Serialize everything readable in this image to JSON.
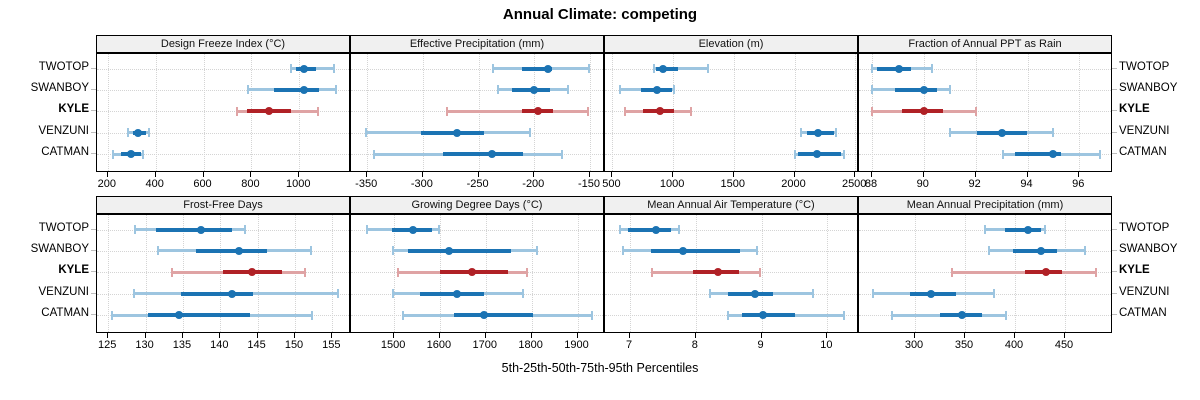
{
  "title": "Annual Climate: competing",
  "caption": "5th-25th-50th-75th-95th Percentiles",
  "stations": [
    "TWOTOP",
    "SWANBOY",
    "KYLE",
    "VENZUNI",
    "CATMAN"
  ],
  "highlight_station": "KYLE",
  "colors": {
    "blue": "#1b73b3",
    "blue_light": "#9dc5e0",
    "red": "#b02126",
    "red_light": "#dfa3a4",
    "grid": "#d4d4d4",
    "strip_bg": "#f0f0f0",
    "border": "#000000",
    "text": "#000000"
  },
  "chart_data": {
    "type": "dot-interval",
    "subtype": "trellis-percentile-dotplot",
    "percentiles": [
      5,
      25,
      50,
      75,
      95
    ],
    "layout": {
      "rows": 2,
      "cols": 4,
      "legend_position": "none",
      "grid": "dotted"
    },
    "panels": [
      {
        "strip": "Design Freeze Index (°C)",
        "xlim": [
          155,
          1216
        ],
        "ticks": [
          200,
          400,
          600,
          800,
          1000
        ],
        "tick_labels": [
          "200",
          "400",
          "600",
          "800",
          "1000"
        ],
        "series": [
          {
            "name": "TWOTOP",
            "values": [
              965,
              985,
              1020,
              1070,
              1146
            ]
          },
          {
            "name": "SWANBOY",
            "values": [
              784,
              896,
              1021,
              1083,
              1153
            ]
          },
          {
            "name": "KYLE",
            "values": [
              739,
              780,
              875,
              965,
              1077
            ]
          },
          {
            "name": "VENZUNI",
            "values": [
              284,
              304,
              325,
              360,
              374
            ]
          },
          {
            "name": "CATMAN",
            "values": [
              221,
              256,
              297,
              339,
              346
            ]
          }
        ]
      },
      {
        "strip": "Effective Precipitation (mm)",
        "xlim": [
          -364.5,
          -136.5
        ],
        "ticks": [
          -350,
          -300,
          -250,
          -200,
          -150
        ],
        "tick_labels": [
          "-350",
          "-300",
          "-250",
          "-200",
          "-150"
        ],
        "series": [
          {
            "name": "TWOTOP",
            "values": [
              -237,
              -211,
              -188,
              -184,
              -151
            ]
          },
          {
            "name": "SWANBOY",
            "values": [
              -233,
              -220,
              -200,
              -186,
              -170
            ]
          },
          {
            "name": "KYLE",
            "values": [
              -278,
              -211,
              -197,
              -183,
              -152
            ]
          },
          {
            "name": "VENZUNI",
            "values": [
              -351,
              -302,
              -269,
              -245,
              -204
            ]
          },
          {
            "name": "CATMAN",
            "values": [
              -344,
              -282,
              -238,
              -210,
              -175
            ]
          }
        ]
      },
      {
        "strip": "Elevation (m)",
        "xlim": [
          439,
          2531
        ],
        "ticks": [
          500,
          1000,
          1500,
          2000,
          2500
        ],
        "tick_labels": [
          "500",
          "1000",
          "1500",
          "2000",
          "2500"
        ],
        "series": [
          {
            "name": "TWOTOP",
            "values": [
              840,
              860,
              915,
              1040,
              1283
            ]
          },
          {
            "name": "SWANBOY",
            "values": [
              563,
              735,
              868,
              995,
              1006
            ]
          },
          {
            "name": "KYLE",
            "values": [
              602,
              749,
              892,
              1012,
              1150
            ]
          },
          {
            "name": "VENZUNI",
            "values": [
              2050,
              2100,
              2195,
              2325,
              2345
            ]
          },
          {
            "name": "CATMAN",
            "values": [
              2000,
              2025,
              2185,
              2385,
              2405
            ]
          }
        ]
      },
      {
        "strip": "Fraction of Annual PPT as Rain",
        "xlim": [
          87.5,
          97.3
        ],
        "ticks": [
          88,
          90,
          92,
          94,
          96
        ],
        "tick_labels": [
          "88",
          "90",
          "92",
          "94",
          "96"
        ],
        "series": [
          {
            "name": "TWOTOP",
            "values": [
              88.0,
              88.2,
              89.05,
              89.5,
              90.3
            ]
          },
          {
            "name": "SWANBOY",
            "values": [
              88.0,
              88.9,
              90.0,
              90.5,
              91.0
            ]
          },
          {
            "name": "KYLE",
            "values": [
              88.0,
              89.15,
              90.0,
              90.75,
              92.0
            ]
          },
          {
            "name": "VENZUNI",
            "values": [
              91.0,
              92.05,
              93.0,
              94.0,
              95.0
            ]
          },
          {
            "name": "CATMAN",
            "values": [
              93.05,
              93.5,
              95.0,
              95.3,
              96.8
            ]
          }
        ]
      },
      {
        "strip": "Frost-Free Days",
        "xlim": [
          123.5,
          157.5
        ],
        "ticks": [
          125,
          130,
          135,
          140,
          145,
          150,
          155
        ],
        "tick_labels": [
          "125",
          "130",
          "135",
          "140",
          "145",
          "150",
          "155"
        ],
        "series": [
          {
            "name": "TWOTOP",
            "values": [
              128.6,
              131.4,
              137.4,
              141.5,
              143.3
            ]
          },
          {
            "name": "SWANBOY",
            "values": [
              131.6,
              136.8,
              142.5,
              146.2,
              152.2
            ]
          },
          {
            "name": "KYLE",
            "values": [
              133.5,
              140.4,
              144.3,
              148.3,
              151.3
            ]
          },
          {
            "name": "VENZUNI",
            "values": [
              128.4,
              134.8,
              141.5,
              144.4,
              155.8
            ]
          },
          {
            "name": "CATMAN",
            "values": [
              125.5,
              130.3,
              134.5,
              144.0,
              152.3
            ]
          }
        ]
      },
      {
        "strip": "Growing Degree Days (°C)",
        "xlim": [
          1406,
          1960
        ],
        "ticks": [
          1500,
          1600,
          1700,
          1800,
          1900
        ],
        "tick_labels": [
          "1500",
          "1600",
          "1700",
          "1800",
          "1900"
        ],
        "series": [
          {
            "name": "TWOTOP",
            "values": [
              1440,
              1495,
              1541,
              1583,
              1598
            ]
          },
          {
            "name": "SWANBOY",
            "values": [
              1498,
              1531,
              1619,
              1755,
              1812
            ]
          },
          {
            "name": "KYLE",
            "values": [
              1509,
              1601,
              1669,
              1748,
              1790
            ]
          },
          {
            "name": "VENZUNI",
            "values": [
              1497,
              1557,
              1636,
              1696,
              1781
            ]
          },
          {
            "name": "CATMAN",
            "values": [
              1520,
              1631,
              1696,
              1803,
              1931
            ]
          }
        ]
      },
      {
        "strip": "Mean Annual Air Temperature (°C)",
        "xlim": [
          6.62,
          10.48
        ],
        "ticks": [
          7,
          8,
          9,
          10
        ],
        "tick_labels": [
          "7",
          "8",
          "9",
          "10"
        ],
        "series": [
          {
            "name": "TWOTOP",
            "values": [
              6.85,
              6.97,
              7.4,
              7.63,
              7.75
            ]
          },
          {
            "name": "SWANBOY",
            "values": [
              6.89,
              7.32,
              7.81,
              8.67,
              8.93
            ]
          },
          {
            "name": "KYLE",
            "values": [
              7.34,
              7.96,
              8.34,
              8.65,
              8.97
            ]
          },
          {
            "name": "VENZUNI",
            "values": [
              8.22,
              8.49,
              8.9,
              9.18,
              9.78
            ]
          },
          {
            "name": "CATMAN",
            "values": [
              8.49,
              8.7,
              9.02,
              9.51,
              10.25
            ]
          }
        ]
      },
      {
        "strip": "Mean Annual Precipitation (mm)",
        "xlim": [
          244,
          498
        ],
        "ticks": [
          300,
          350,
          400,
          450
        ],
        "tick_labels": [
          "300",
          "350",
          "400",
          "450"
        ],
        "series": [
          {
            "name": "TWOTOP",
            "values": [
              370,
              390,
              413,
              426,
              430
            ]
          },
          {
            "name": "SWANBOY",
            "values": [
              374,
              398,
              426,
              442,
              470
            ]
          },
          {
            "name": "KYLE",
            "values": [
              337,
              410,
              431,
              447,
              481
            ]
          },
          {
            "name": "VENZUNI",
            "values": [
              258,
              295,
              316,
              341,
              379
            ]
          },
          {
            "name": "CATMAN",
            "values": [
              277,
              325,
              347,
              367,
              391
            ]
          }
        ]
      }
    ]
  }
}
